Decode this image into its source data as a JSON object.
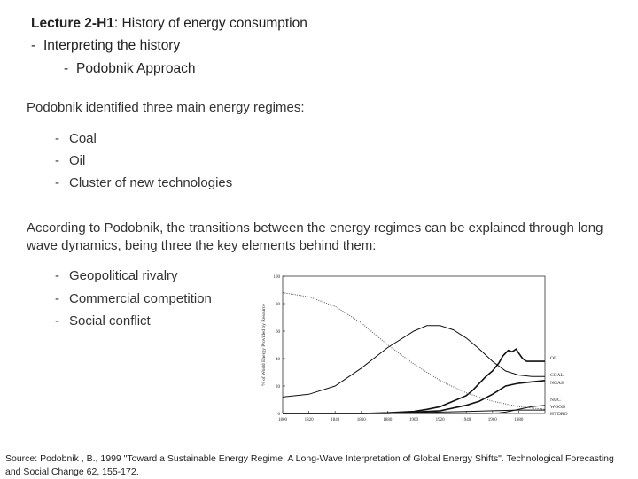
{
  "header": {
    "title_bold": "Lecture 2-H1",
    "title_rest": ": History of energy consumption",
    "level1": "Interpreting the history",
    "level2": "Podobnik Approach"
  },
  "intro": "Podobnik identified three main energy regimes:",
  "regimes": [
    "Coal",
    "Oil",
    "Cluster of new technologies"
  ],
  "transition_text": "According to Podobnik, the transitions between the energy regimes can be explained through long wave dynamics,  being three the key elements behind them:",
  "key_elements": [
    "Geopolitical rivalry",
    "Commercial competition",
    "Social conflict"
  ],
  "source": "Source: Podobnik , B., 1999 \"Toward a Sustainable Energy Regime: A Long-Wave Interpretation of Global Energy Shifts\". Technological Forecasting and Social Change 62, 155-172.",
  "chart_data": {
    "type": "line",
    "ylabel": "% of World Energy Provided by Resource",
    "xlim": [
      1800,
      2000
    ],
    "ylim": [
      0,
      100
    ],
    "x_ticks": [
      1800,
      1820,
      1840,
      1860,
      1880,
      1900,
      1920,
      1940,
      1960,
      1980
    ],
    "y_ticks": [
      0,
      20,
      40,
      60,
      80,
      100
    ],
    "series": [
      {
        "name": "OIL",
        "style": "solid",
        "points": [
          [
            1800,
            0
          ],
          [
            1860,
            0
          ],
          [
            1880,
            0.5
          ],
          [
            1900,
            1.5
          ],
          [
            1910,
            3
          ],
          [
            1920,
            5
          ],
          [
            1930,
            9
          ],
          [
            1940,
            13
          ],
          [
            1945,
            17
          ],
          [
            1950,
            22
          ],
          [
            1955,
            27
          ],
          [
            1960,
            31
          ],
          [
            1965,
            37
          ],
          [
            1968,
            42
          ],
          [
            1972,
            46
          ],
          [
            1975,
            45
          ],
          [
            1978,
            47
          ],
          [
            1980,
            44
          ],
          [
            1983,
            40
          ],
          [
            1986,
            38
          ],
          [
            1990,
            38
          ],
          [
            1995,
            38
          ],
          [
            2000,
            38
          ]
        ]
      },
      {
        "name": "COAL",
        "style": "solid",
        "points": [
          [
            1800,
            12
          ],
          [
            1820,
            14
          ],
          [
            1840,
            20
          ],
          [
            1860,
            33
          ],
          [
            1880,
            48
          ],
          [
            1900,
            60
          ],
          [
            1910,
            64
          ],
          [
            1920,
            64
          ],
          [
            1930,
            61
          ],
          [
            1940,
            55
          ],
          [
            1950,
            47
          ],
          [
            1960,
            38
          ],
          [
            1970,
            31
          ],
          [
            1980,
            28
          ],
          [
            1990,
            27
          ],
          [
            2000,
            27
          ]
        ]
      },
      {
        "name": "NGAS",
        "style": "solid",
        "points": [
          [
            1800,
            0
          ],
          [
            1880,
            0
          ],
          [
            1900,
            1
          ],
          [
            1920,
            2
          ],
          [
            1930,
            4
          ],
          [
            1940,
            6
          ],
          [
            1950,
            9
          ],
          [
            1960,
            14
          ],
          [
            1965,
            17
          ],
          [
            1970,
            20
          ],
          [
            1975,
            21
          ],
          [
            1980,
            22
          ],
          [
            1990,
            23
          ],
          [
            2000,
            24
          ]
        ]
      },
      {
        "name": "NUC",
        "style": "solid",
        "points": [
          [
            1800,
            0
          ],
          [
            1955,
            0
          ],
          [
            1965,
            0.5
          ],
          [
            1970,
            1
          ],
          [
            1975,
            2
          ],
          [
            1980,
            3
          ],
          [
            1990,
            5
          ],
          [
            2000,
            6
          ]
        ]
      },
      {
        "name": "WOOD",
        "style": "dotted",
        "points": [
          [
            1800,
            88
          ],
          [
            1820,
            85
          ],
          [
            1840,
            78
          ],
          [
            1860,
            66
          ],
          [
            1880,
            50
          ],
          [
            1890,
            43
          ],
          [
            1900,
            36
          ],
          [
            1920,
            24
          ],
          [
            1940,
            15
          ],
          [
            1960,
            9
          ],
          [
            1980,
            5
          ],
          [
            2000,
            3
          ]
        ]
      },
      {
        "name": "HYDRO",
        "style": "solid",
        "points": [
          [
            1800,
            0
          ],
          [
            1890,
            0
          ],
          [
            1900,
            0.5
          ],
          [
            1920,
            1
          ],
          [
            1940,
            1.5
          ],
          [
            1960,
            2
          ],
          [
            1980,
            2.5
          ],
          [
            2000,
            2.5
          ]
        ]
      }
    ]
  }
}
